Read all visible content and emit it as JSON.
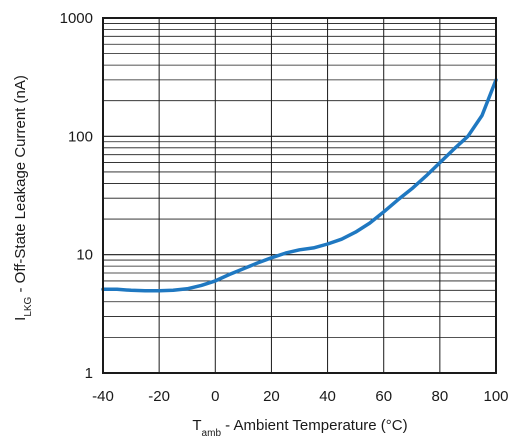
{
  "chart_data": {
    "type": "line",
    "xlabel": {
      "main": "T",
      "sub": "amb",
      "rest": " - Ambient Temperature (°C)"
    },
    "ylabel": {
      "main": "I",
      "sub": "LKG",
      "rest": " - Off-State Leakage Current (nA)"
    },
    "xlim": [
      -40,
      100
    ],
    "ylim": [
      1,
      1000
    ],
    "yscale": "log",
    "grid": true,
    "x_ticks": [
      -40,
      -20,
      0,
      20,
      40,
      60,
      80,
      100
    ],
    "x_tick_labels": [
      "-40",
      "-20",
      "0",
      "20",
      "40",
      "60",
      "80",
      "100"
    ],
    "y_ticks": [
      1,
      10,
      100,
      1000
    ],
    "y_tick_labels": [
      "1",
      "10",
      "100",
      "1000"
    ],
    "series_color": "#1f78c1",
    "series": [
      {
        "x": [
          -40,
          -35,
          -30,
          -25,
          -20,
          -15,
          -10,
          -5,
          0,
          5,
          10,
          15,
          20,
          25,
          30,
          35,
          40,
          45,
          50,
          55,
          60,
          65,
          70,
          75,
          80,
          85,
          90,
          95,
          100
        ],
        "y": [
          5.1,
          5.1,
          5.0,
          4.95,
          4.95,
          5.0,
          5.15,
          5.5,
          6.0,
          6.8,
          7.6,
          8.5,
          9.4,
          10.3,
          11.0,
          11.4,
          12.3,
          13.5,
          15.5,
          18.5,
          23.0,
          29.0,
          36.0,
          46.0,
          60.0,
          78.0,
          100.0,
          150.0,
          300.0
        ]
      }
    ]
  }
}
